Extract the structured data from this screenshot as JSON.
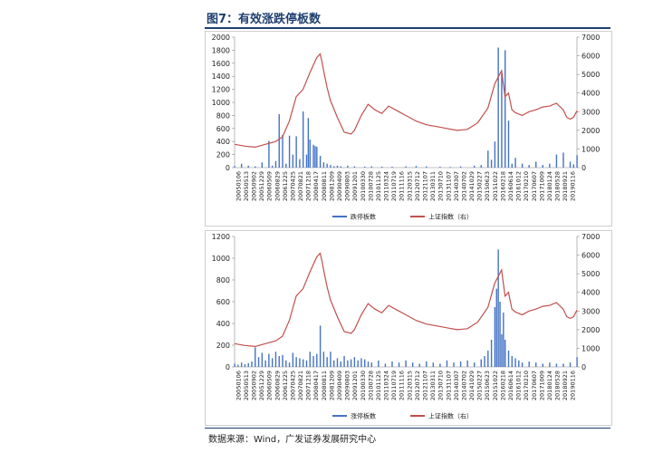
{
  "figure": {
    "title": "图7：有效涨跌停板数",
    "source": "数据来源：Wind，广发证券发展研究中心"
  },
  "colors": {
    "bars": "#4472c4",
    "line": "#c0504d"
  },
  "x_labels": [
    "20050106",
    "20050513",
    "20050902",
    "20051229",
    "20060509",
    "20060829",
    "20061225",
    "20070425",
    "20070821",
    "20071218",
    "20080417",
    "20080811",
    "20081209",
    "20090409",
    "20090803",
    "20091201",
    "20100330",
    "20100728",
    "20101125",
    "20110324",
    "20110719",
    "20111116",
    "20120315",
    "20120712",
    "20121107",
    "20130311",
    "20130710",
    "20131107",
    "20140307",
    "20140702",
    "20141029",
    "20150227",
    "20150623",
    "20151022",
    "20160218",
    "20160614",
    "20161012",
    "20170210",
    "20170607",
    "20171009",
    "20180124",
    "20180528",
    "20180921",
    "20190116"
  ],
  "chart_data": [
    {
      "type": "bar",
      "ylim": [
        0,
        2000
      ],
      "yticks": [
        0,
        200,
        400,
        600,
        800,
        1000,
        1200,
        1400,
        1600,
        1800,
        2000
      ],
      "y2lim": [
        0,
        7000
      ],
      "y2ticks": [
        0,
        1000,
        2000,
        3000,
        4000,
        5000,
        6000,
        7000
      ],
      "series": [
        {
          "name": "跌停板数",
          "type": "bar",
          "axis": "left",
          "x": [
            0.0,
            0.02,
            0.04,
            0.06,
            0.08,
            0.1,
            0.11,
            0.12,
            0.13,
            0.14,
            0.15,
            0.16,
            0.17,
            0.18,
            0.19,
            0.2,
            0.21,
            0.215,
            0.22,
            0.23,
            0.235,
            0.24,
            0.25,
            0.26,
            0.27,
            0.28,
            0.29,
            0.3,
            0.31,
            0.33,
            0.35,
            0.38,
            0.4,
            0.43,
            0.46,
            0.5,
            0.53,
            0.56,
            0.6,
            0.63,
            0.66,
            0.7,
            0.72,
            0.74,
            0.75,
            0.76,
            0.77,
            0.78,
            0.79,
            0.8,
            0.81,
            0.82,
            0.84,
            0.86,
            0.88,
            0.9,
            0.92,
            0.94,
            0.96,
            0.98,
            0.99,
            1.0
          ],
          "values": [
            25,
            60,
            30,
            20,
            80,
            410,
            30,
            100,
            820,
            500,
            60,
            490,
            200,
            480,
            130,
            860,
            200,
            760,
            430,
            350,
            330,
            320,
            180,
            80,
            60,
            40,
            20,
            30,
            20,
            30,
            20,
            15,
            20,
            15,
            15,
            20,
            25,
            20,
            15,
            10,
            20,
            30,
            40,
            260,
            120,
            400,
            1840,
            1450,
            1800,
            720,
            60,
            150,
            60,
            40,
            90,
            40,
            60,
            200,
            230,
            90,
            50,
            190
          ]
        },
        {
          "name": "上证指数（右）",
          "type": "line",
          "axis": "right",
          "x": [
            0.0,
            0.03,
            0.06,
            0.09,
            0.12,
            0.14,
            0.16,
            0.18,
            0.2,
            0.22,
            0.24,
            0.25,
            0.255,
            0.26,
            0.27,
            0.28,
            0.3,
            0.32,
            0.34,
            0.35,
            0.37,
            0.39,
            0.41,
            0.43,
            0.45,
            0.48,
            0.5,
            0.53,
            0.56,
            0.59,
            0.62,
            0.65,
            0.68,
            0.71,
            0.74,
            0.76,
            0.78,
            0.79,
            0.8,
            0.81,
            0.82,
            0.84,
            0.86,
            0.88,
            0.9,
            0.92,
            0.94,
            0.96,
            0.97,
            0.98,
            0.99,
            1.0
          ],
          "values": [
            1250,
            1150,
            1100,
            1250,
            1400,
            1650,
            2500,
            3800,
            4200,
            5100,
            5900,
            6100,
            5700,
            5200,
            4300,
            3600,
            2700,
            1900,
            1800,
            2000,
            2800,
            3400,
            3100,
            2900,
            3300,
            3000,
            2800,
            2500,
            2300,
            2200,
            2100,
            2000,
            2050,
            2400,
            3200,
            4500,
            5200,
            3800,
            4000,
            3100,
            2950,
            2800,
            3000,
            3100,
            3250,
            3300,
            3450,
            3100,
            2700,
            2600,
            2700,
            3050
          ]
        }
      ]
    },
    {
      "type": "bar",
      "ylim": [
        0,
        1200
      ],
      "yticks": [
        0,
        200,
        400,
        600,
        800,
        1000,
        1200
      ],
      "y2lim": [
        0,
        7000
      ],
      "y2ticks": [
        0,
        1000,
        2000,
        3000,
        4000,
        5000,
        6000,
        7000
      ],
      "series": [
        {
          "name": "涨停板数",
          "type": "bar",
          "axis": "left",
          "x": [
            0.0,
            0.01,
            0.02,
            0.03,
            0.04,
            0.05,
            0.06,
            0.07,
            0.08,
            0.09,
            0.1,
            0.11,
            0.12,
            0.13,
            0.14,
            0.15,
            0.16,
            0.17,
            0.18,
            0.19,
            0.2,
            0.21,
            0.22,
            0.23,
            0.24,
            0.25,
            0.26,
            0.27,
            0.28,
            0.29,
            0.3,
            0.31,
            0.32,
            0.33,
            0.34,
            0.35,
            0.36,
            0.37,
            0.38,
            0.39,
            0.4,
            0.42,
            0.44,
            0.46,
            0.48,
            0.5,
            0.52,
            0.54,
            0.56,
            0.58,
            0.6,
            0.62,
            0.64,
            0.66,
            0.68,
            0.7,
            0.72,
            0.73,
            0.74,
            0.75,
            0.76,
            0.765,
            0.77,
            0.775,
            0.78,
            0.785,
            0.79,
            0.8,
            0.81,
            0.82,
            0.83,
            0.84,
            0.86,
            0.88,
            0.9,
            0.92,
            0.94,
            0.96,
            0.98,
            1.0
          ],
          "values": [
            30,
            20,
            40,
            25,
            35,
            50,
            180,
            90,
            130,
            60,
            120,
            80,
            140,
            100,
            110,
            60,
            40,
            130,
            90,
            80,
            70,
            60,
            140,
            100,
            120,
            380,
            140,
            90,
            140,
            60,
            80,
            50,
            100,
            60,
            70,
            90,
            60,
            80,
            70,
            50,
            40,
            60,
            30,
            50,
            40,
            60,
            40,
            30,
            50,
            40,
            30,
            60,
            40,
            50,
            60,
            40,
            70,
            100,
            150,
            250,
            550,
            720,
            1080,
            600,
            300,
            500,
            250,
            150,
            100,
            80,
            60,
            40,
            50,
            40,
            30,
            40,
            30,
            30,
            40,
            90
          ]
        },
        {
          "name": "上证指数（右）",
          "type": "line",
          "axis": "right",
          "x": [
            0.0,
            0.03,
            0.06,
            0.09,
            0.12,
            0.14,
            0.16,
            0.18,
            0.2,
            0.22,
            0.24,
            0.25,
            0.255,
            0.26,
            0.27,
            0.28,
            0.3,
            0.32,
            0.34,
            0.35,
            0.37,
            0.39,
            0.41,
            0.43,
            0.45,
            0.48,
            0.5,
            0.53,
            0.56,
            0.59,
            0.62,
            0.65,
            0.68,
            0.71,
            0.74,
            0.76,
            0.78,
            0.79,
            0.8,
            0.81,
            0.82,
            0.84,
            0.86,
            0.88,
            0.9,
            0.92,
            0.94,
            0.96,
            0.97,
            0.98,
            0.99,
            1.0
          ],
          "values": [
            1250,
            1150,
            1100,
            1250,
            1400,
            1650,
            2500,
            3800,
            4200,
            5100,
            5900,
            6100,
            5700,
            5200,
            4300,
            3600,
            2700,
            1900,
            1800,
            2000,
            2800,
            3400,
            3100,
            2900,
            3300,
            3000,
            2800,
            2500,
            2300,
            2200,
            2100,
            2000,
            2050,
            2400,
            3200,
            4500,
            5200,
            3800,
            4000,
            3100,
            2950,
            2800,
            3000,
            3100,
            3250,
            3300,
            3450,
            3100,
            2700,
            2600,
            2700,
            3050
          ]
        }
      ]
    }
  ]
}
